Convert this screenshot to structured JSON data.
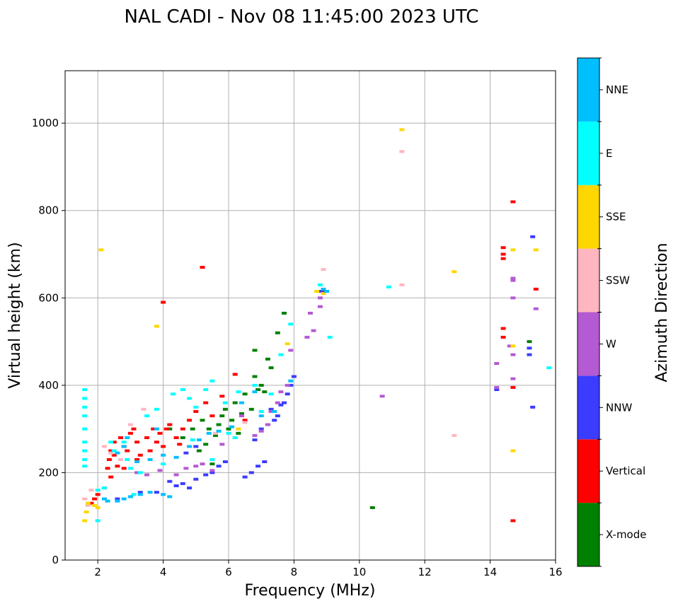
{
  "chart_data": {
    "type": "scatter",
    "title": "NAL CADI - Nov 08 11:45:00 2023 UTC",
    "xlabel": "Frequency (MHz)",
    "ylabel": "Virtual height (km)",
    "xlim": [
      1,
      16
    ],
    "ylim": [
      0,
      1120
    ],
    "xticks": [
      2,
      4,
      6,
      8,
      10,
      12,
      14,
      16
    ],
    "yticks": [
      0,
      200,
      400,
      600,
      800,
      1000
    ],
    "grid": true,
    "colorbar": {
      "title": "Azimuth Direction",
      "categories": [
        {
          "name": "X-mode",
          "color": "#008000"
        },
        {
          "name": "Vertical",
          "color": "#ff0000"
        },
        {
          "name": "NNW",
          "color": "#3c3cff"
        },
        {
          "name": "W",
          "color": "#b45ad2"
        },
        {
          "name": "SSW",
          "color": "#ffb6c1"
        },
        {
          "name": "SSE",
          "color": "#ffd700"
        },
        {
          "name": "E",
          "color": "#00ffff"
        },
        {
          "name": "NNE",
          "color": "#00bfff"
        }
      ]
    },
    "series": [
      {
        "name": "X-mode",
        "points": [
          [
            4.6,
            280
          ],
          [
            4.9,
            300
          ],
          [
            5.2,
            320
          ],
          [
            5.4,
            300
          ],
          [
            5.6,
            285
          ],
          [
            5.7,
            310
          ],
          [
            5.8,
            330
          ],
          [
            5.9,
            345
          ],
          [
            6.0,
            300
          ],
          [
            6.1,
            320
          ],
          [
            6.2,
            360
          ],
          [
            6.3,
            290
          ],
          [
            6.4,
            335
          ],
          [
            6.5,
            380
          ],
          [
            6.7,
            345
          ],
          [
            6.8,
            480
          ],
          [
            6.8,
            420
          ],
          [
            7.0,
            400
          ],
          [
            7.1,
            385
          ],
          [
            7.2,
            460
          ],
          [
            7.3,
            440
          ],
          [
            7.5,
            520
          ],
          [
            7.7,
            565
          ],
          [
            5.1,
            250
          ],
          [
            5.5,
            220
          ],
          [
            10.4,
            120
          ],
          [
            15.2,
            500
          ],
          [
            4.2,
            300
          ],
          [
            6.9,
            390
          ],
          [
            5.3,
            265
          ]
        ]
      },
      {
        "name": "Vertical",
        "points": [
          [
            1.8,
            130
          ],
          [
            1.9,
            140
          ],
          [
            2.0,
            150
          ],
          [
            2.2,
            165
          ],
          [
            2.3,
            210
          ],
          [
            2.35,
            230
          ],
          [
            2.4,
            250
          ],
          [
            2.5,
            240
          ],
          [
            2.5,
            270
          ],
          [
            2.6,
            215
          ],
          [
            2.7,
            280
          ],
          [
            2.8,
            260
          ],
          [
            2.9,
            250
          ],
          [
            3.0,
            290
          ],
          [
            3.1,
            300
          ],
          [
            3.2,
            270
          ],
          [
            3.3,
            240
          ],
          [
            3.5,
            280
          ],
          [
            3.6,
            250
          ],
          [
            3.7,
            300
          ],
          [
            3.8,
            270
          ],
          [
            3.9,
            290
          ],
          [
            4.0,
            260
          ],
          [
            4.1,
            300
          ],
          [
            4.2,
            310
          ],
          [
            4.4,
            280
          ],
          [
            4.6,
            300
          ],
          [
            4.8,
            320
          ],
          [
            5.0,
            340
          ],
          [
            5.3,
            360
          ],
          [
            5.5,
            330
          ],
          [
            5.8,
            375
          ],
          [
            6.2,
            425
          ],
          [
            6.5,
            320
          ],
          [
            4.0,
            590
          ],
          [
            5.2,
            670
          ],
          [
            8.9,
            615
          ],
          [
            14.4,
            715
          ],
          [
            14.4,
            700
          ],
          [
            14.4,
            690
          ],
          [
            14.4,
            530
          ],
          [
            14.4,
            510
          ],
          [
            14.7,
            395
          ],
          [
            14.7,
            820
          ],
          [
            14.7,
            90
          ],
          [
            15.4,
            620
          ],
          [
            2.8,
            210
          ],
          [
            3.2,
            230
          ],
          [
            2.4,
            190
          ],
          [
            4.5,
            265
          ]
        ]
      },
      {
        "name": "NNW",
        "points": [
          [
            2.6,
            140
          ],
          [
            3.3,
            155
          ],
          [
            3.8,
            155
          ],
          [
            4.2,
            180
          ],
          [
            4.4,
            170
          ],
          [
            4.6,
            175
          ],
          [
            4.8,
            165
          ],
          [
            5.0,
            185
          ],
          [
            5.3,
            195
          ],
          [
            5.5,
            200
          ],
          [
            5.7,
            215
          ],
          [
            5.9,
            225
          ],
          [
            6.5,
            190
          ],
          [
            6.7,
            200
          ],
          [
            6.9,
            215
          ],
          [
            7.1,
            225
          ],
          [
            7.0,
            300
          ],
          [
            7.2,
            310
          ],
          [
            7.4,
            320
          ],
          [
            7.5,
            330
          ],
          [
            7.6,
            355
          ],
          [
            7.7,
            360
          ],
          [
            7.8,
            380
          ],
          [
            7.9,
            400
          ],
          [
            8.0,
            420
          ],
          [
            8.8,
            615
          ],
          [
            14.2,
            390
          ],
          [
            15.2,
            485
          ],
          [
            15.2,
            470
          ],
          [
            15.3,
            740
          ],
          [
            15.3,
            350
          ],
          [
            7.3,
            345
          ],
          [
            6.8,
            275
          ],
          [
            5.0,
            260
          ],
          [
            4.7,
            245
          ]
        ]
      },
      {
        "name": "W",
        "points": [
          [
            3.2,
            200
          ],
          [
            3.5,
            195
          ],
          [
            3.9,
            205
          ],
          [
            4.4,
            195
          ],
          [
            4.7,
            210
          ],
          [
            5.0,
            215
          ],
          [
            5.2,
            220
          ],
          [
            5.5,
            205
          ],
          [
            6.8,
            285
          ],
          [
            7.0,
            295
          ],
          [
            7.2,
            310
          ],
          [
            7.3,
            340
          ],
          [
            7.5,
            360
          ],
          [
            7.6,
            385
          ],
          [
            7.8,
            400
          ],
          [
            8.4,
            510
          ],
          [
            8.5,
            565
          ],
          [
            8.6,
            525
          ],
          [
            8.8,
            580
          ],
          [
            8.8,
            600
          ],
          [
            10.7,
            375
          ],
          [
            14.2,
            450
          ],
          [
            14.2,
            395
          ],
          [
            14.7,
            645
          ],
          [
            14.7,
            640
          ],
          [
            14.7,
            600
          ],
          [
            14.7,
            470
          ],
          [
            14.7,
            415
          ],
          [
            15.4,
            575
          ],
          [
            14.6,
            490
          ],
          [
            7.9,
            480
          ],
          [
            6.4,
            330
          ],
          [
            5.8,
            265
          ]
        ]
      },
      {
        "name": "SSW",
        "points": [
          [
            1.6,
            140
          ],
          [
            1.7,
            125
          ],
          [
            1.8,
            160
          ],
          [
            8.9,
            665
          ],
          [
            11.3,
            935
          ],
          [
            11.3,
            630
          ],
          [
            12.9,
            285
          ],
          [
            2.4,
            245
          ],
          [
            2.2,
            260
          ],
          [
            2.7,
            230
          ],
          [
            3.4,
            345
          ],
          [
            3.0,
            310
          ],
          [
            5.6,
            290
          ],
          [
            6.5,
            315
          ]
        ]
      },
      {
        "name": "SSE",
        "points": [
          [
            1.6,
            90
          ],
          [
            1.7,
            130
          ],
          [
            1.9,
            125
          ],
          [
            2.1,
            710
          ],
          [
            3.8,
            535
          ],
          [
            7.8,
            495
          ],
          [
            8.7,
            615
          ],
          [
            8.9,
            610
          ],
          [
            11.3,
            985
          ],
          [
            12.9,
            660
          ],
          [
            14.7,
            710
          ],
          [
            14.7,
            250
          ],
          [
            14.7,
            490
          ],
          [
            15.4,
            710
          ],
          [
            1.65,
            110
          ],
          [
            2.0,
            120
          ],
          [
            6.3,
            300
          ]
        ]
      },
      {
        "name": "E",
        "points": [
          [
            1.6,
            390
          ],
          [
            1.6,
            370
          ],
          [
            1.6,
            350
          ],
          [
            1.6,
            330
          ],
          [
            1.6,
            300
          ],
          [
            1.6,
            270
          ],
          [
            1.6,
            250
          ],
          [
            1.6,
            230
          ],
          [
            1.6,
            215
          ],
          [
            2.0,
            160
          ],
          [
            2.0,
            90
          ],
          [
            2.4,
            270
          ],
          [
            2.5,
            250
          ],
          [
            2.9,
            230
          ],
          [
            2.8,
            270
          ],
          [
            3.0,
            210
          ],
          [
            3.5,
            330
          ],
          [
            3.8,
            345
          ],
          [
            4.0,
            220
          ],
          [
            4.3,
            380
          ],
          [
            4.6,
            390
          ],
          [
            4.8,
            370
          ],
          [
            5.0,
            350
          ],
          [
            5.3,
            390
          ],
          [
            5.5,
            410
          ],
          [
            5.9,
            360
          ],
          [
            6.0,
            290
          ],
          [
            6.3,
            385
          ],
          [
            6.8,
            400
          ],
          [
            7.0,
            340
          ],
          [
            7.3,
            380
          ],
          [
            7.6,
            470
          ],
          [
            7.9,
            540
          ],
          [
            8.8,
            630
          ],
          [
            9.1,
            510
          ],
          [
            10.9,
            625
          ],
          [
            15.8,
            440
          ],
          [
            2.2,
            165
          ],
          [
            3.1,
            150
          ],
          [
            4.9,
            275
          ],
          [
            5.5,
            230
          ],
          [
            6.2,
            280
          ],
          [
            3.3,
            200
          ]
        ]
      },
      {
        "name": "NNE",
        "points": [
          [
            2.3,
            135
          ],
          [
            2.6,
            135
          ],
          [
            2.8,
            140
          ],
          [
            3.0,
            145
          ],
          [
            3.3,
            150
          ],
          [
            3.6,
            155
          ],
          [
            4.0,
            150
          ],
          [
            4.2,
            145
          ],
          [
            2.6,
            245
          ],
          [
            2.8,
            260
          ],
          [
            2.9,
            280
          ],
          [
            3.2,
            225
          ],
          [
            3.6,
            230
          ],
          [
            4.0,
            240
          ],
          [
            4.4,
            235
          ],
          [
            4.8,
            260
          ],
          [
            5.1,
            275
          ],
          [
            5.4,
            290
          ],
          [
            5.7,
            295
          ],
          [
            6.1,
            305
          ],
          [
            6.4,
            360
          ],
          [
            6.8,
            385
          ],
          [
            7.0,
            330
          ],
          [
            7.4,
            340
          ],
          [
            7.9,
            410
          ],
          [
            9.0,
            615
          ],
          [
            8.9,
            620
          ],
          [
            2.2,
            140
          ],
          [
            3.8,
            300
          ]
        ]
      }
    ]
  }
}
